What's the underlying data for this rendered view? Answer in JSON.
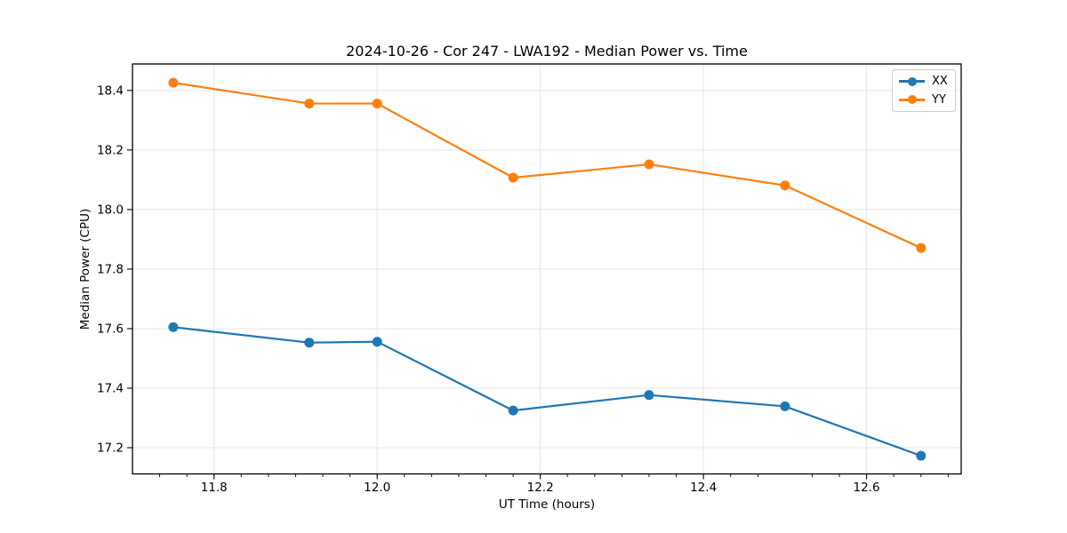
{
  "chart_data": {
    "type": "line",
    "title": "2024-10-26 - Cor 247 - LWA192 - Median Power vs. Time",
    "xlabel": "UT Time (hours)",
    "ylabel": "Median Power (CPU)",
    "xlim": [
      11.7,
      12.716
    ],
    "ylim": [
      17.112,
      18.489
    ],
    "x_ticks": [
      11.8,
      12.0,
      12.2,
      12.4,
      12.6
    ],
    "y_ticks": [
      17.2,
      17.4,
      17.6,
      17.8,
      18.0,
      18.2,
      18.4
    ],
    "x_minor_ticks": [
      11.7333,
      11.7667,
      11.8333,
      11.8667,
      11.9,
      11.9333,
      11.9667,
      12.0333,
      12.0667,
      12.1,
      12.1333,
      12.1667,
      12.2333,
      12.2667,
      12.3,
      12.3333,
      12.3667,
      12.4333,
      12.4667,
      12.5333,
      12.5667,
      12.6333,
      12.6667,
      12.7
    ],
    "grid": true,
    "grid_color": "#e5e5e5",
    "axis_color": "#000000",
    "legend_position": "upper right",
    "x": [
      11.75,
      11.9167,
      12.0,
      12.1667,
      12.3333,
      12.5,
      12.6667
    ],
    "series": [
      {
        "name": "XX",
        "color": "#1f77b4",
        "values": [
          17.605,
          17.553,
          17.556,
          17.325,
          17.377,
          17.339,
          17.173
        ]
      },
      {
        "name": "YY",
        "color": "#ff7f0e",
        "values": [
          18.426,
          18.356,
          18.356,
          18.107,
          18.152,
          18.081,
          17.871
        ]
      }
    ]
  }
}
